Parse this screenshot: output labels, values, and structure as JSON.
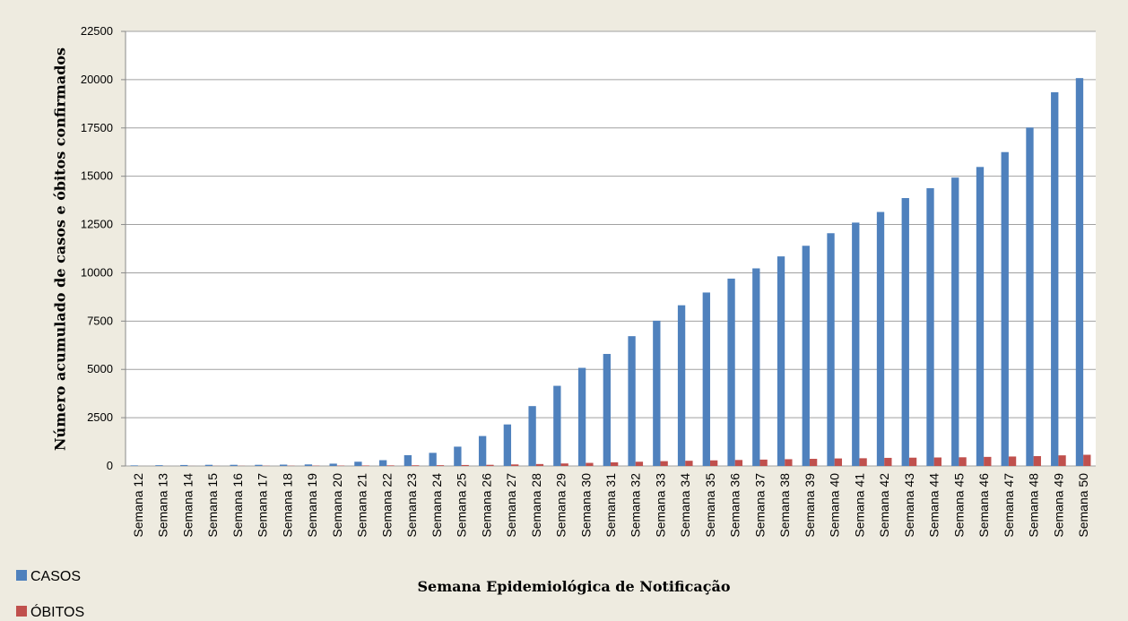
{
  "chart_data": {
    "type": "bar",
    "xlabel": "Semana Epidemiológica de Notificação",
    "ylabel": "Número acumulado de casos e óbitos confirmados",
    "categories": [
      "Semana 12",
      "Semana 13",
      "Semana 14",
      "Semana 15",
      "Semana 16",
      "Semana 17",
      "Semana 18",
      "Semana 19",
      "Semana 20",
      "Semana 21",
      "Semana 22",
      "Semana 23",
      "Semana 24",
      "Semana 25",
      "Semana 26",
      "Semana 27",
      "Semana 28",
      "Semana 29",
      "Semana 30",
      "Semana 31",
      "Semana 32",
      "Semana 33",
      "Semana 34",
      "Semana 35",
      "Semana 36",
      "Semana 37",
      "Semana 38",
      "Semana 39",
      "Semana 40",
      "Semana 41",
      "Semana 42",
      "Semana 43",
      "Semana 44",
      "Semana 45",
      "Semana 46",
      "Semana 47",
      "Semana 48",
      "Semana 49",
      "Semana 50"
    ],
    "series": [
      {
        "name": "CASOS",
        "color": "#4f81bd",
        "values": [
          30,
          40,
          50,
          60,
          60,
          60,
          70,
          80,
          120,
          220,
          300,
          560,
          680,
          1000,
          1550,
          2150,
          3100,
          4150,
          5080,
          5800,
          6720,
          7520,
          8320,
          8980,
          9700,
          10230,
          10850,
          11400,
          12050,
          12600,
          13150,
          13870,
          14380,
          14930,
          15480,
          16250,
          17520,
          19350,
          20080
        ]
      },
      {
        "name": "ÓBITOS",
        "color": "#c0504d",
        "values": [
          1,
          2,
          3,
          5,
          8,
          10,
          12,
          15,
          20,
          25,
          30,
          35,
          40,
          50,
          60,
          80,
          100,
          130,
          160,
          190,
          220,
          250,
          270,
          290,
          310,
          330,
          350,
          370,
          390,
          400,
          420,
          430,
          440,
          450,
          470,
          490,
          510,
          550,
          580
        ]
      }
    ],
    "ylim": [
      0,
      22500
    ],
    "yticks": [
      0,
      2500,
      5000,
      7500,
      10000,
      12500,
      15000,
      17500,
      20000,
      22500
    ],
    "grid": true,
    "legend": "bottom-left"
  }
}
